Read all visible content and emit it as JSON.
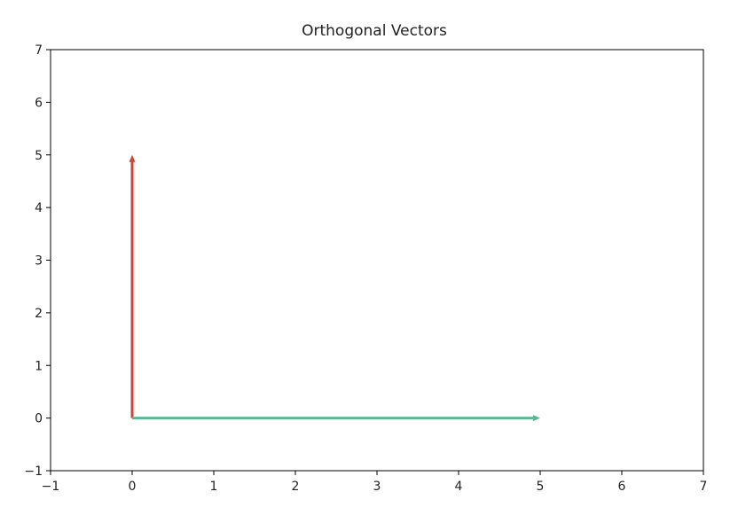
{
  "chart_data": {
    "type": "quiver",
    "title": "Orthogonal Vectors",
    "vectors": [
      {
        "x": 0,
        "y": 0,
        "u": 0,
        "v": 5,
        "color": "#c8463a"
      },
      {
        "x": 0,
        "y": 0,
        "u": 5,
        "v": 0,
        "color": "#5cb894"
      }
    ],
    "xlim": [
      -1,
      7
    ],
    "ylim": [
      -1,
      7
    ],
    "xticks": [
      {
        "value": -1,
        "label": "−1"
      },
      0,
      1,
      2,
      3,
      4,
      5,
      6,
      7
    ],
    "yticks": [
      {
        "value": -1,
        "label": "−1"
      },
      0,
      1,
      2,
      3,
      4,
      5,
      6,
      7
    ],
    "grid": false
  }
}
